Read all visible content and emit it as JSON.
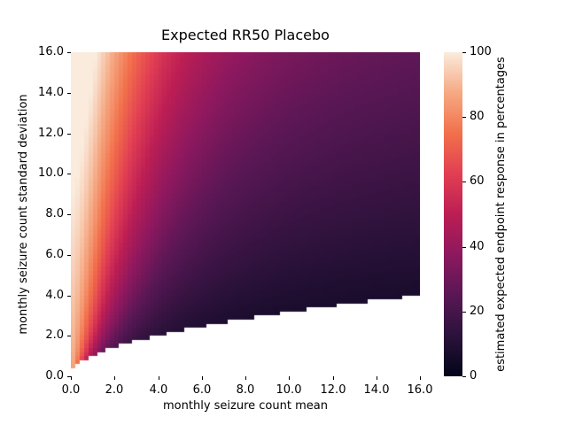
{
  "figure": {
    "background": "#ffffff",
    "text_color": "#000000"
  },
  "chart_data": {
    "type": "heatmap",
    "title": "Expected RR50 Placebo",
    "xlabel": "monthly seizure count mean",
    "ylabel": "monthly seizure count standard deviation",
    "xlim": [
      0,
      16
    ],
    "ylim": [
      0,
      16
    ],
    "xtick_values": [
      0,
      2,
      4,
      6,
      8,
      10,
      12,
      14,
      16
    ],
    "xtick_labels": [
      "0.0",
      "2.0",
      "4.0",
      "6.0",
      "8.0",
      "10.0",
      "12.0",
      "14.0",
      "16.0"
    ],
    "ytick_values": [
      0,
      2,
      4,
      6,
      8,
      10,
      12,
      14,
      16
    ],
    "ytick_labels": [
      "0.0",
      "2.0",
      "4.0",
      "6.0",
      "8.0",
      "10.0",
      "12.0",
      "14.0",
      "16.0"
    ],
    "grid_resolution": 80,
    "mask_rule": "cell is white (masked) where std <= sqrt(mean), i.e. variance <= mean",
    "value_model": {
      "description": "expected RR50 placebo response in percent, read from the figure",
      "formula": "v = min(100, A_coef*std + B / (1 + (mean/(k_coef*sqrt(std)))^p))",
      "A_coef": 1.35,
      "B": 88,
      "k_coef": 0.885,
      "p": 1.86,
      "vmin": 0,
      "vmax": 100
    },
    "colormap": {
      "name": "rocket",
      "stops": [
        [
          0.0,
          "#03051A"
        ],
        [
          0.125,
          "#2C123B"
        ],
        [
          0.25,
          "#591755"
        ],
        [
          0.375,
          "#8E185F"
        ],
        [
          0.5,
          "#BC1E54"
        ],
        [
          0.625,
          "#E23F53"
        ],
        [
          0.75,
          "#F2704B"
        ],
        [
          0.875,
          "#F5A983"
        ],
        [
          1.0,
          "#FAEBDD"
        ]
      ]
    },
    "colorbar": {
      "label": "estimated expected endpoint response in percentages",
      "tick_values": [
        0,
        20,
        40,
        60,
        80,
        100
      ],
      "tick_labels": [
        "0",
        "20",
        "40",
        "60",
        "80",
        "100"
      ],
      "vmin": 0,
      "vmax": 100
    },
    "sampled_values": {
      "note": "percent values read from the heatmap at sample points; rows = std descending, cols = mean ascending; null = masked white region",
      "mean": [
        0.5,
        2,
        4,
        6,
        8,
        10,
        12,
        14,
        16
      ],
      "std": [
        16,
        14,
        12,
        10,
        8,
        6,
        4,
        2,
        1
      ],
      "matrix": [
        [
          100,
          87,
          61,
          46,
          37,
          33,
          30,
          28,
          27
        ],
        [
          100,
          82,
          55,
          41,
          33,
          29,
          26,
          25,
          23
        ],
        [
          100,
          77,
          50,
          36,
          29,
          25,
          23,
          21,
          20
        ],
        [
          98,
          71,
          43,
          31,
          24,
          21,
          19,
          18,
          17
        ],
        [
          95,
          64,
          37,
          25,
          20,
          17,
          15,
          14,
          14
        ],
        [
          91,
          55,
          30,
          20,
          15,
          13,
          12,
          11,
          10
        ],
        [
          86,
          44,
          21,
          14,
          10,
          9,
          8,
          7,
          null
        ],
        [
          77,
          29,
          null,
          null,
          null,
          null,
          null,
          null,
          null
        ],
        [
          67,
          null,
          null,
          null,
          null,
          null,
          null,
          null,
          null
        ]
      ]
    }
  }
}
